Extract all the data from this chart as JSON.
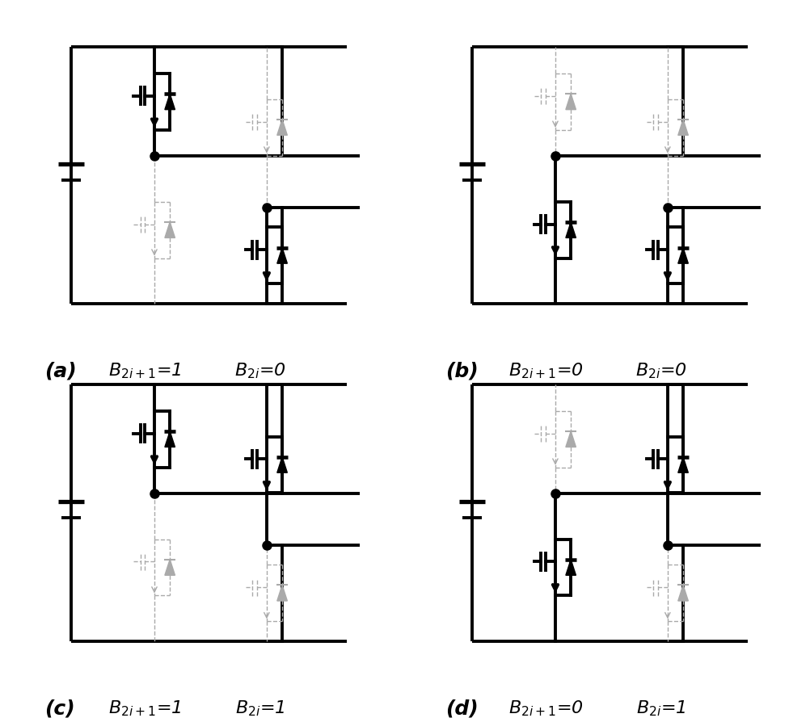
{
  "panels": [
    {
      "label": "(a)",
      "eq1": "B_{2i+1}=1",
      "eq2": "B_{2i}=0",
      "on": [
        true,
        false,
        false,
        true
      ]
    },
    {
      "label": "(b)",
      "eq1": "B_{2i+1}=0",
      "eq2": "B_{2i}=0",
      "on": [
        false,
        false,
        true,
        true
      ]
    },
    {
      "label": "(c)",
      "eq1": "B_{2i+1}=1",
      "eq2": "B_{2i}=1",
      "on": [
        true,
        true,
        false,
        false
      ]
    },
    {
      "label": "(d)",
      "eq1": "B_{2i+1}=0",
      "eq2": "B_{2i}=1",
      "on": [
        false,
        true,
        true,
        false
      ]
    }
  ],
  "lw_on": 2.8,
  "lw_off": 1.0,
  "col_on": "#000000",
  "col_off": "#aaaaaa",
  "bg": "#ffffff"
}
